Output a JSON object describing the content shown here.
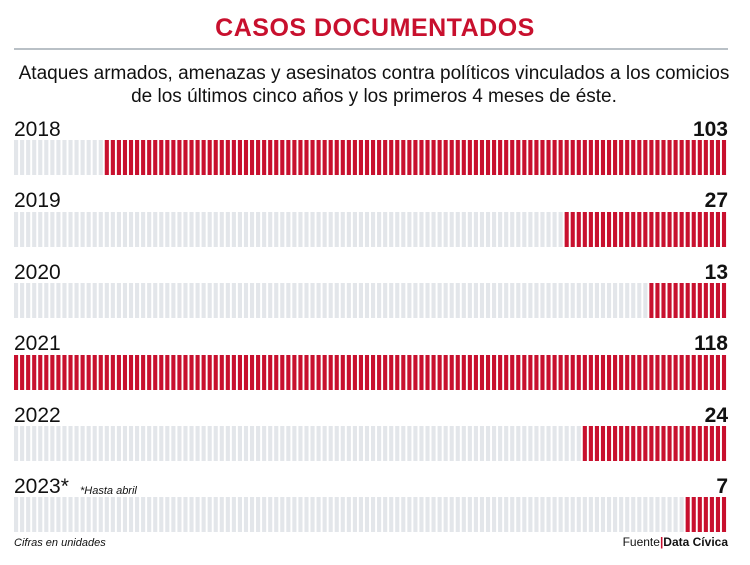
{
  "title": "CASOS DOCUMENTADOS",
  "subtitle": "Ataques armados, amenazas y asesinatos contra políticos vinculados a los comicios de los últimos cinco años y los primeros 4 meses de éste.",
  "note": "*Hasta abril",
  "footer": {
    "left": "Cifras en unidades",
    "source_label": "Fuente",
    "source": "Data Cívica"
  },
  "colors": {
    "accent": "#c8102e",
    "empty": "#e3e6ea"
  },
  "chart_data": {
    "type": "bar",
    "orientation": "horizontal",
    "unit_stripes_total": 118,
    "categories": [
      "2018",
      "2019",
      "2020",
      "2021",
      "2022",
      "2023*"
    ],
    "values": [
      103,
      27,
      13,
      118,
      24,
      7
    ],
    "title": "CASOS DOCUMENTADOS",
    "xlabel": "",
    "ylabel": "",
    "xlim": [
      0,
      118
    ],
    "grid": false
  }
}
